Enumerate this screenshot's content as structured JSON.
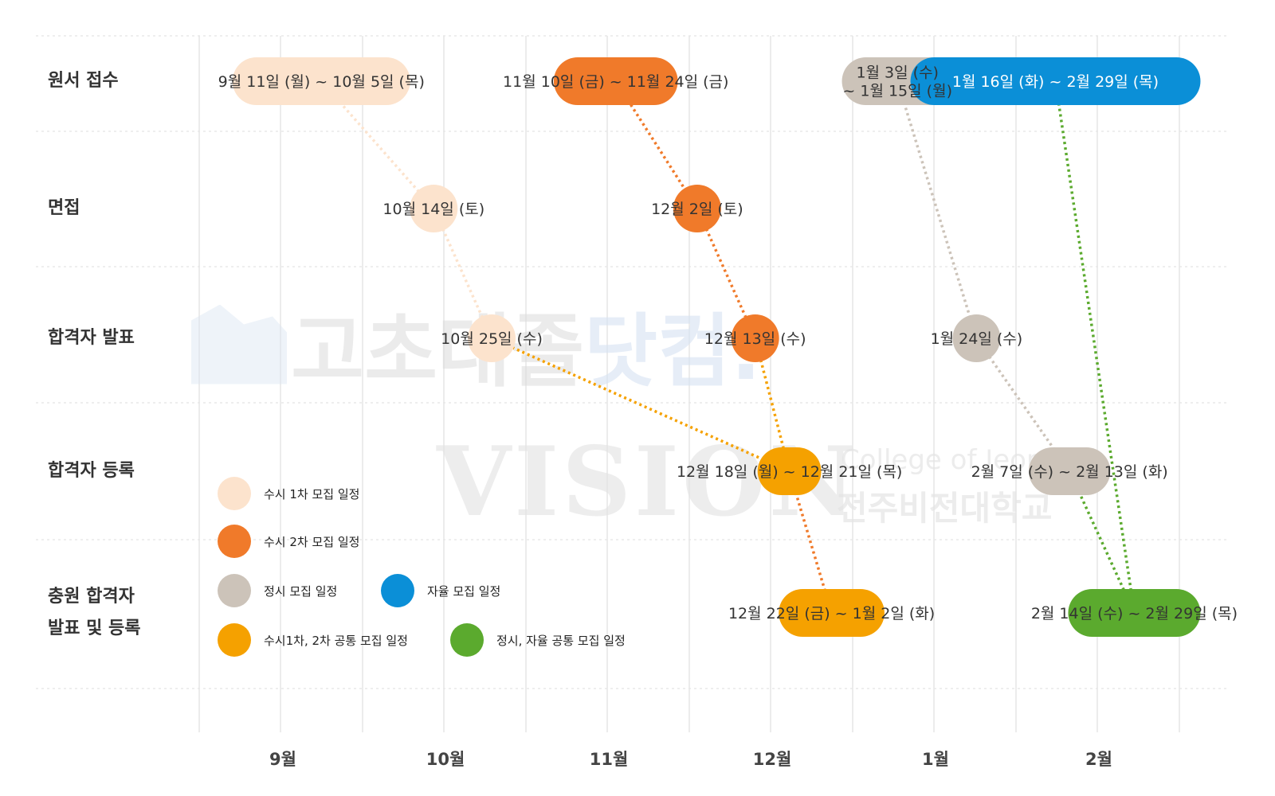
{
  "rows": [
    {
      "id": "r0",
      "label": "원서 접수"
    },
    {
      "id": "r1",
      "label": "면접"
    },
    {
      "id": "r2",
      "label": "합격자 발표"
    },
    {
      "id": "r3",
      "label": "합격자 등록"
    },
    {
      "id": "r4",
      "label": "충원 합격자\n발표 및 등록"
    }
  ],
  "months": [
    "9월",
    "10월",
    "11월",
    "12월",
    "1월",
    "2월"
  ],
  "colors": {
    "susi1": "#FCE3CD",
    "susi2": "#F07A2A",
    "jeongsi": "#CCC3B9",
    "jayul": "#0B8FD7",
    "susi_common": "#F5A100",
    "jeongsi_common": "#5BAA2E"
  },
  "legend": [
    {
      "key": "susi1",
      "label": "수시 1차 모집 일정"
    },
    {
      "key": "susi2",
      "label": "수시 2차 모집 일정"
    },
    {
      "key": "jeongsi",
      "label": "정시 모집 일정"
    },
    {
      "key": "jayul",
      "label": "자율 모집 일정"
    },
    {
      "key": "susi_common",
      "label": "수시1차, 2차 공통 모집 일정"
    },
    {
      "key": "jeongsi_common",
      "label": "정시, 자율 공통 모집 일정"
    }
  ],
  "events": [
    {
      "id": "e1",
      "row": 0,
      "start": "09-11",
      "end": "10-05",
      "color": "susi1",
      "label": "9월 11일 (월) ~ 10월 5일 (목)"
    },
    {
      "id": "e2",
      "row": 1,
      "start": "10-14",
      "end": "10-14",
      "color": "susi1",
      "label": "10월 14일 (토)"
    },
    {
      "id": "e3",
      "row": 2,
      "start": "10-25",
      "end": "10-25",
      "color": "susi1",
      "label": "10월 25일 (수)"
    },
    {
      "id": "e4",
      "row": 0,
      "start": "11-10",
      "end": "11-24",
      "color": "susi2",
      "label": "11월 10일 (금) ~ 11월 24일 (금)"
    },
    {
      "id": "e5",
      "row": 1,
      "start": "12-02",
      "end": "12-02",
      "color": "susi2",
      "label": "12월 2일 (토)"
    },
    {
      "id": "e6",
      "row": 2,
      "start": "12-13",
      "end": "12-13",
      "color": "susi2",
      "label": "12월 13일 (수)"
    },
    {
      "id": "e7",
      "row": 3,
      "start": "12-18",
      "end": "12-21",
      "color": "susi_common",
      "label": "12월 18일 (월) ~ 12월 21일 (목)"
    },
    {
      "id": "e8",
      "row": 4,
      "start": "12-22",
      "end": "01-02",
      "color": "susi_common",
      "label": "12월 22일 (금) ~ 1월 2일 (화)"
    },
    {
      "id": "e9",
      "row": 0,
      "start": "01-03",
      "end": "01-15",
      "color": "jeongsi",
      "label": "1월 3일 (수)\n~ 1월 15일 (월)"
    },
    {
      "id": "e10",
      "row": 2,
      "start": "01-24",
      "end": "01-24",
      "color": "jeongsi",
      "label": "1월 24일 (수)"
    },
    {
      "id": "e11",
      "row": 3,
      "start": "02-07",
      "end": "02-13",
      "color": "jeongsi",
      "label": "2월 7일 (수) ~ 2월 13일 (화)"
    },
    {
      "id": "e12",
      "row": 0,
      "start": "01-16",
      "end": "02-29",
      "color": "jayul",
      "label": "1월 16일 (화) ~ 2월 29일 (목)"
    },
    {
      "id": "e13",
      "row": 4,
      "start": "02-14",
      "end": "02-29",
      "color": "jeongsi_common",
      "label": "2월 14일 (수) ~ 2월 29일 (목)"
    }
  ],
  "links": [
    {
      "from": "e1",
      "to": "e2",
      "color": "susi1"
    },
    {
      "from": "e2",
      "to": "e3",
      "color": "susi1"
    },
    {
      "from": "e3",
      "to": "e7",
      "color": "susi_common"
    },
    {
      "from": "e4",
      "to": "e5",
      "color": "susi2"
    },
    {
      "from": "e5",
      "to": "e6",
      "color": "susi2"
    },
    {
      "from": "e6",
      "to": "e7",
      "color": "susi_common"
    },
    {
      "from": "e7",
      "to": "e8",
      "color": "susi2"
    },
    {
      "from": "e9",
      "to": "e10",
      "color": "jeongsi"
    },
    {
      "from": "e10",
      "to": "e11",
      "color": "jeongsi"
    },
    {
      "from": "e11",
      "to": "e13",
      "color": "jeongsi_common"
    },
    {
      "from": "e12",
      "to": "e13",
      "color": "jeongsi_common"
    }
  ],
  "watermark": {
    "brand1": "고초대졸",
    "brand2": "닷컴.",
    "vision": "VISION",
    "english": "College of Jeonju",
    "korean": "전주비전대학교"
  }
}
